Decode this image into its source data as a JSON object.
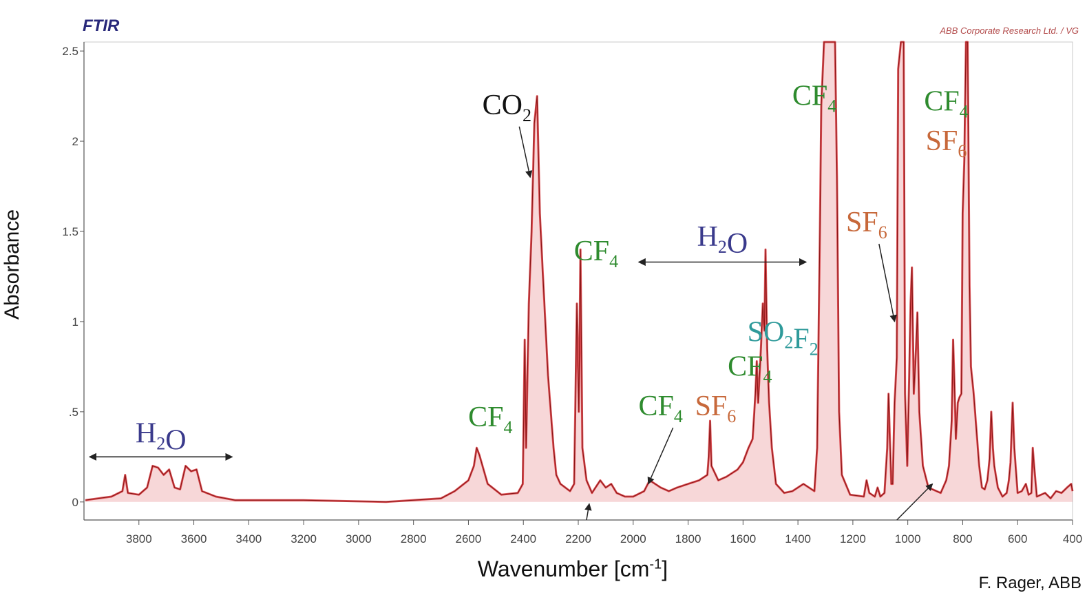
{
  "header": {
    "instrument": "FTIR",
    "source": "ABB Corporate Research Ltd. / VG"
  },
  "axes": {
    "ylabel": "Absorbance",
    "xlabel_main": "Wavenumber [cm",
    "xlabel_sup": "-1",
    "xlabel_end": "]"
  },
  "credit": "F. Rager, ABB",
  "colors": {
    "spectrum_fill": "#d41f26",
    "spectrum_line": "#8a1616",
    "h2o": "#3a3a8c",
    "cf4": "#2e8b2e",
    "sf6": "#c7683a",
    "so2f2": "#2e9a9a",
    "co2": "#111111"
  },
  "chart_data": {
    "type": "line",
    "title": "",
    "xlabel": "Wavenumber [cm-1]",
    "ylabel": "Absorbance",
    "xlim": [
      4000,
      400
    ],
    "ylim": [
      -0.1,
      2.55
    ],
    "x_ticks": [
      3800,
      3600,
      3400,
      3200,
      3000,
      2800,
      2600,
      2400,
      2200,
      2000,
      1800,
      1600,
      1400,
      1200,
      1000,
      800,
      600,
      400
    ],
    "y_ticks": [
      0,
      0.5,
      1,
      1.5,
      2,
      2.5
    ],
    "y_tick_labels": [
      "0",
      ".5",
      "1",
      "1.5",
      "2",
      "2.5"
    ],
    "grid": false,
    "series": [
      {
        "values": [
          [
            3995,
            0.01
          ],
          [
            3900,
            0.03
          ],
          [
            3860,
            0.06
          ],
          [
            3850,
            0.15
          ],
          [
            3840,
            0.05
          ],
          [
            3800,
            0.04
          ],
          [
            3770,
            0.08
          ],
          [
            3750,
            0.2
          ],
          [
            3730,
            0.19
          ],
          [
            3710,
            0.15
          ],
          [
            3690,
            0.18
          ],
          [
            3670,
            0.08
          ],
          [
            3650,
            0.07
          ],
          [
            3630,
            0.2
          ],
          [
            3610,
            0.17
          ],
          [
            3590,
            0.18
          ],
          [
            3570,
            0.06
          ],
          [
            3520,
            0.03
          ],
          [
            3450,
            0.01
          ],
          [
            3200,
            0.01
          ],
          [
            2900,
            0.0
          ],
          [
            2700,
            0.02
          ],
          [
            2650,
            0.06
          ],
          [
            2600,
            0.12
          ],
          [
            2580,
            0.2
          ],
          [
            2570,
            0.3
          ],
          [
            2560,
            0.26
          ],
          [
            2530,
            0.1
          ],
          [
            2480,
            0.04
          ],
          [
            2420,
            0.05
          ],
          [
            2402,
            0.1
          ],
          [
            2395,
            0.9
          ],
          [
            2390,
            0.3
          ],
          [
            2380,
            1.1
          ],
          [
            2370,
            1.5
          ],
          [
            2360,
            2.1
          ],
          [
            2350,
            2.25
          ],
          [
            2340,
            1.6
          ],
          [
            2330,
            1.3
          ],
          [
            2320,
            1.0
          ],
          [
            2310,
            0.7
          ],
          [
            2300,
            0.5
          ],
          [
            2290,
            0.3
          ],
          [
            2280,
            0.15
          ],
          [
            2265,
            0.1
          ],
          [
            2230,
            0.06
          ],
          [
            2215,
            0.1
          ],
          [
            2210,
            0.6
          ],
          [
            2205,
            1.1
          ],
          [
            2198,
            0.5
          ],
          [
            2192,
            1.4
          ],
          [
            2185,
            0.3
          ],
          [
            2170,
            0.12
          ],
          [
            2150,
            0.05
          ],
          [
            2120,
            0.12
          ],
          [
            2100,
            0.08
          ],
          [
            2080,
            0.1
          ],
          [
            2060,
            0.05
          ],
          [
            2030,
            0.03
          ],
          [
            2000,
            0.03
          ],
          [
            1960,
            0.06
          ],
          [
            1940,
            0.12
          ],
          [
            1920,
            0.1
          ],
          [
            1900,
            0.08
          ],
          [
            1870,
            0.06
          ],
          [
            1840,
            0.08
          ],
          [
            1800,
            0.1
          ],
          [
            1760,
            0.12
          ],
          [
            1730,
            0.15
          ],
          [
            1725,
            0.25
          ],
          [
            1720,
            0.45
          ],
          [
            1715,
            0.2
          ],
          [
            1690,
            0.12
          ],
          [
            1660,
            0.14
          ],
          [
            1640,
            0.16
          ],
          [
            1620,
            0.18
          ],
          [
            1600,
            0.22
          ],
          [
            1580,
            0.3
          ],
          [
            1565,
            0.35
          ],
          [
            1555,
            0.6
          ],
          [
            1550,
            0.78
          ],
          [
            1545,
            0.55
          ],
          [
            1535,
            0.85
          ],
          [
            1528,
            1.1
          ],
          [
            1522,
            0.95
          ],
          [
            1518,
            1.4
          ],
          [
            1512,
            0.85
          ],
          [
            1505,
            0.55
          ],
          [
            1495,
            0.3
          ],
          [
            1480,
            0.1
          ],
          [
            1450,
            0.05
          ],
          [
            1420,
            0.06
          ],
          [
            1380,
            0.1
          ],
          [
            1340,
            0.06
          ],
          [
            1330,
            0.3
          ],
          [
            1325,
            0.9
          ],
          [
            1320,
            1.5
          ],
          [
            1315,
            2.2
          ],
          [
            1305,
            2.55
          ],
          [
            1265,
            2.55
          ],
          [
            1258,
            1.8
          ],
          [
            1250,
            0.5
          ],
          [
            1240,
            0.15
          ],
          [
            1210,
            0.04
          ],
          [
            1160,
            0.03
          ],
          [
            1150,
            0.12
          ],
          [
            1140,
            0.05
          ],
          [
            1120,
            0.03
          ],
          [
            1110,
            0.08
          ],
          [
            1100,
            0.03
          ],
          [
            1085,
            0.05
          ],
          [
            1075,
            0.3
          ],
          [
            1070,
            0.6
          ],
          [
            1065,
            0.35
          ],
          [
            1060,
            0.1
          ],
          [
            1055,
            0.1
          ],
          [
            1048,
            0.55
          ],
          [
            1040,
            0.8
          ],
          [
            1035,
            2.4
          ],
          [
            1025,
            2.55
          ],
          [
            1015,
            2.55
          ],
          [
            1010,
            0.6
          ],
          [
            1002,
            0.2
          ],
          [
            995,
            0.7
          ],
          [
            990,
            1.1
          ],
          [
            985,
            1.3
          ],
          [
            978,
            0.6
          ],
          [
            970,
            0.85
          ],
          [
            965,
            1.05
          ],
          [
            958,
            0.5
          ],
          [
            945,
            0.2
          ],
          [
            925,
            0.08
          ],
          [
            880,
            0.05
          ],
          [
            860,
            0.12
          ],
          [
            850,
            0.2
          ],
          [
            840,
            0.45
          ],
          [
            835,
            0.9
          ],
          [
            830,
            0.65
          ],
          [
            825,
            0.35
          ],
          [
            818,
            0.55
          ],
          [
            812,
            0.58
          ],
          [
            805,
            0.6
          ],
          [
            800,
            1.6
          ],
          [
            794,
            1.9
          ],
          [
            788,
            2.55
          ],
          [
            782,
            2.55
          ],
          [
            775,
            1.2
          ],
          [
            770,
            0.75
          ],
          [
            760,
            0.6
          ],
          [
            750,
            0.4
          ],
          [
            740,
            0.2
          ],
          [
            730,
            0.08
          ],
          [
            720,
            0.07
          ],
          [
            710,
            0.12
          ],
          [
            702,
            0.24
          ],
          [
            696,
            0.5
          ],
          [
            690,
            0.3
          ],
          [
            685,
            0.2
          ],
          [
            672,
            0.08
          ],
          [
            655,
            0.03
          ],
          [
            640,
            0.05
          ],
          [
            632,
            0.12
          ],
          [
            626,
            0.22
          ],
          [
            618,
            0.55
          ],
          [
            612,
            0.3
          ],
          [
            600,
            0.05
          ],
          [
            585,
            0.06
          ],
          [
            570,
            0.1
          ],
          [
            560,
            0.04
          ],
          [
            550,
            0.05
          ],
          [
            545,
            0.3
          ],
          [
            540,
            0.2
          ],
          [
            530,
            0.03
          ],
          [
            500,
            0.05
          ],
          [
            480,
            0.02
          ],
          [
            460,
            0.06
          ],
          [
            440,
            0.05
          ],
          [
            420,
            0.08
          ],
          [
            405,
            0.1
          ],
          [
            400,
            0.06
          ]
        ]
      }
    ],
    "annotations": [
      {
        "label": "H₂O",
        "type": "range",
        "x_range": [
          3980,
          3460
        ],
        "arrow_y": 0.25,
        "text_y": 0.33,
        "color": "h2o"
      },
      {
        "label": "CF₄",
        "type": "text",
        "x": 2520,
        "y": 0.42,
        "color": "cf4"
      },
      {
        "label": "CO₂",
        "type": "arrow",
        "x": 2460,
        "y": 2.15,
        "to": [
          2375,
          1.8
        ],
        "color": "co2"
      },
      {
        "label": "CF₄",
        "type": "text",
        "x": 2135,
        "y": 1.34,
        "color": "cf4"
      },
      {
        "label": "H₂O",
        "type": "range",
        "x_range": [
          1980,
          1370
        ],
        "arrow_y": 1.33,
        "text_y": 1.42,
        "color": "h2o"
      },
      {
        "label": "SO₂F₂",
        "type": "text",
        "x": 1455,
        "y": 0.89,
        "color": "so2f2"
      },
      {
        "label": "CF₄",
        "type": "text",
        "x": 1575,
        "y": 0.7,
        "color": "cf4"
      },
      {
        "label": "SF₆",
        "type": "text",
        "x": 1700,
        "y": 0.48,
        "color": "sf6"
      },
      {
        "label": "CF₄",
        "type": "arrow",
        "x": 1900,
        "y": 0.48,
        "to": [
          1945,
          0.1
        ],
        "color": "cf4"
      },
      {
        "label": "",
        "type": "arrow",
        "x": 2170,
        "y": -0.1,
        "to": [
          2160,
          -0.01
        ],
        "color": "co2"
      },
      {
        "label": "CF₄",
        "type": "text",
        "x": 1340,
        "y": 2.2,
        "color": "cf4"
      },
      {
        "label": "SF₆",
        "type": "arrow",
        "x": 1150,
        "y": 1.5,
        "to": [
          1048,
          1.0
        ],
        "color": "sf6"
      },
      {
        "label": "",
        "type": "arrow",
        "x": 1040,
        "y": -0.1,
        "to": [
          910,
          0.1
        ],
        "color": "co2"
      },
      {
        "label": "CF₄",
        "type": "text",
        "x": 860,
        "y": 2.17,
        "color": "cf4"
      },
      {
        "label": "SF₆",
        "type": "text",
        "x": 860,
        "y": 1.95,
        "color": "sf6"
      }
    ]
  }
}
